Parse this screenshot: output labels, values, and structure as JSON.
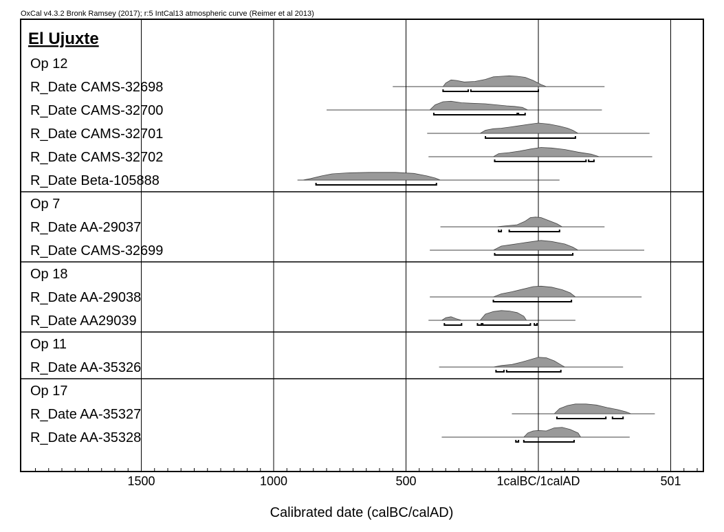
{
  "header": "OxCal v4.3.2 Bronk Ramsey (2017); r:5 IntCal13 atmospheric curve (Reimer et al 2013)",
  "chart_data": {
    "type": "oxcal-multiplot",
    "title": "El Ujuxte",
    "xlabel": "Calibrated date (calBC/calAD)",
    "x_axis_note": "years relative to 1 calBC/1calAD; negative = calBC, positive = calAD",
    "xlim": [
      -1900,
      625
    ],
    "major_ticks": [
      {
        "value": -1500,
        "label": "1500"
      },
      {
        "value": -1000,
        "label": "1000"
      },
      {
        "value": -500,
        "label": "500"
      },
      {
        "value": 0,
        "label": "1calBC/1calAD"
      },
      {
        "value": 500,
        "label": "501"
      }
    ],
    "minor_tick_step": 50,
    "grid": true,
    "groups": [
      {
        "name": "Op 12",
        "samples": [
          {
            "label": "R_Date CAMS-32698",
            "range_line": [
              -550,
              250
            ],
            "distribution": [
              [
                -360,
                0
              ],
              [
                -350,
                7
              ],
              [
                -330,
                13
              ],
              [
                -310,
                12
              ],
              [
                -280,
                9
              ],
              [
                -240,
                10
              ],
              [
                -200,
                14
              ],
              [
                -170,
                19
              ],
              [
                -140,
                20
              ],
              [
                -110,
                21
              ],
              [
                -80,
                20
              ],
              [
                -50,
                18
              ],
              [
                -20,
                12
              ],
              [
                10,
                4
              ],
              [
                30,
                0
              ]
            ],
            "ranges": [
              [
                -360,
                -265
              ],
              [
                -255,
                0
              ]
            ]
          },
          {
            "label": "R_Date CAMS-32700",
            "range_line": [
              -800,
              240
            ],
            "distribution": [
              [
                -410,
                0
              ],
              [
                -390,
                10
              ],
              [
                -360,
                16
              ],
              [
                -330,
                17
              ],
              [
                -290,
                14
              ],
              [
                -250,
                13
              ],
              [
                -200,
                12
              ],
              [
                -160,
                10
              ],
              [
                -120,
                8
              ],
              [
                -90,
                7
              ],
              [
                -60,
                5
              ],
              [
                -40,
                0
              ]
            ],
            "ranges": [
              [
                -395,
                -80
              ],
              [
                -75,
                -50
              ]
            ]
          },
          {
            "label": "R_Date CAMS-32701",
            "range_line": [
              -420,
              420
            ],
            "distribution": [
              [
                -220,
                0
              ],
              [
                -200,
                6
              ],
              [
                -170,
                9
              ],
              [
                -140,
                10
              ],
              [
                -110,
                12
              ],
              [
                -70,
                15
              ],
              [
                -30,
                18
              ],
              [
                0,
                20
              ],
              [
                40,
                18
              ],
              [
                80,
                14
              ],
              [
                110,
                10
              ],
              [
                130,
                6
              ],
              [
                150,
                0
              ]
            ],
            "ranges": [
              [
                -200,
                140
              ]
            ]
          },
          {
            "label": "R_Date CAMS-32702",
            "range_line": [
              -415,
              430
            ],
            "distribution": [
              [
                -170,
                0
              ],
              [
                -150,
                6
              ],
              [
                -110,
                8
              ],
              [
                -70,
                11
              ],
              [
                -30,
                15
              ],
              [
                10,
                18
              ],
              [
                50,
                17
              ],
              [
                100,
                14
              ],
              [
                150,
                9
              ],
              [
                200,
                5
              ],
              [
                230,
                0
              ]
            ],
            "ranges": [
              [
                -165,
                180
              ],
              [
                190,
                210
              ]
            ]
          },
          {
            "label": "R_Date Beta-105888",
            "range_line": [
              -910,
              80
            ],
            "distribution": [
              [
                -890,
                0
              ],
              [
                -860,
                3
              ],
              [
                -820,
                8
              ],
              [
                -780,
                12
              ],
              [
                -720,
                14
              ],
              [
                -640,
                15
              ],
              [
                -540,
                15
              ],
              [
                -470,
                13
              ],
              [
                -420,
                8
              ],
              [
                -390,
                4
              ],
              [
                -370,
                0
              ]
            ],
            "ranges": [
              [
                -840,
                -385
              ]
            ]
          }
        ]
      },
      {
        "name": "Op 7",
        "samples": [
          {
            "label": "R_Date AA-29037",
            "range_line": [
              -370,
              250
            ],
            "distribution": [
              [
                -160,
                0
              ],
              [
                -120,
                2
              ],
              [
                -80,
                4
              ],
              [
                -50,
                11
              ],
              [
                -30,
                18
              ],
              [
                -10,
                19
              ],
              [
                10,
                18
              ],
              [
                40,
                12
              ],
              [
                70,
                6
              ],
              [
                90,
                0
              ]
            ],
            "ranges": [
              [
                -150,
                -140
              ],
              [
                -110,
                80
              ]
            ]
          },
          {
            "label": "R_Date CAMS-32699",
            "range_line": [
              -410,
              400
            ],
            "distribution": [
              [
                -170,
                0
              ],
              [
                -140,
                8
              ],
              [
                -100,
                11
              ],
              [
                -60,
                14
              ],
              [
                -20,
                17
              ],
              [
                10,
                19
              ],
              [
                50,
                17
              ],
              [
                100,
                12
              ],
              [
                130,
                6
              ],
              [
                150,
                0
              ]
            ],
            "ranges": [
              [
                -165,
                130
              ]
            ]
          }
        ]
      },
      {
        "name": "Op 18",
        "samples": [
          {
            "label": "R_Date AA-29038",
            "range_line": [
              -410,
              390
            ],
            "distribution": [
              [
                -170,
                0
              ],
              [
                -140,
                6
              ],
              [
                -100,
                10
              ],
              [
                -60,
                15
              ],
              [
                -20,
                20
              ],
              [
                10,
                21
              ],
              [
                50,
                19
              ],
              [
                90,
                14
              ],
              [
                120,
                8
              ],
              [
                140,
                0
              ]
            ],
            "ranges": [
              [
                -170,
                125
              ]
            ]
          },
          {
            "label": "R_Date AA29039",
            "range_line": [
              -415,
              140
            ],
            "distribution": [
              [
                -365,
                0
              ],
              [
                -350,
                5
              ],
              [
                -330,
                7
              ],
              [
                -310,
                3
              ],
              [
                -290,
                0
              ],
              [
                -220,
                0
              ],
              [
                -200,
                12
              ],
              [
                -170,
                17
              ],
              [
                -140,
                19
              ],
              [
                -110,
                18
              ],
              [
                -80,
                15
              ],
              [
                -55,
                8
              ],
              [
                -45,
                0
              ]
            ],
            "ranges": [
              [
                -355,
                -290
              ],
              [
                -230,
                -215
              ],
              [
                -210,
                -30
              ],
              [
                -15,
                -5
              ]
            ]
          }
        ]
      },
      {
        "name": "Op 11",
        "samples": [
          {
            "label": "R_Date AA-35326",
            "range_line": [
              -375,
              320
            ],
            "distribution": [
              [
                -170,
                0
              ],
              [
                -140,
                3
              ],
              [
                -100,
                5
              ],
              [
                -60,
                10
              ],
              [
                -20,
                16
              ],
              [
                0,
                19
              ],
              [
                30,
                18
              ],
              [
                60,
                12
              ],
              [
                90,
                3
              ],
              [
                100,
                0
              ]
            ],
            "ranges": [
              [
                -160,
                -130
              ],
              [
                -120,
                85
              ]
            ]
          }
        ]
      },
      {
        "name": "Op 17",
        "samples": [
          {
            "label": "R_Date AA-35327",
            "range_line": [
              -100,
              440
            ],
            "distribution": [
              [
                60,
                0
              ],
              [
                80,
                10
              ],
              [
                110,
                16
              ],
              [
                140,
                19
              ],
              [
                180,
                19
              ],
              [
                220,
                17
              ],
              [
                260,
                12
              ],
              [
                300,
                8
              ],
              [
                330,
                4
              ],
              [
                350,
                0
              ]
            ],
            "ranges": [
              [
                70,
                255
              ],
              [
                280,
                320
              ]
            ]
          },
          {
            "label": "R_Date AA-35328",
            "range_line": [
              -365,
              345
            ],
            "distribution": [
              [
                -55,
                0
              ],
              [
                -40,
                8
              ],
              [
                -20,
                12
              ],
              [
                0,
                13
              ],
              [
                30,
                12
              ],
              [
                60,
                18
              ],
              [
                90,
                19
              ],
              [
                120,
                15
              ],
              [
                150,
                8
              ],
              [
                160,
                0
              ]
            ],
            "ranges": [
              [
                -85,
                -75
              ],
              [
                -55,
                135
              ]
            ]
          }
        ]
      }
    ]
  }
}
